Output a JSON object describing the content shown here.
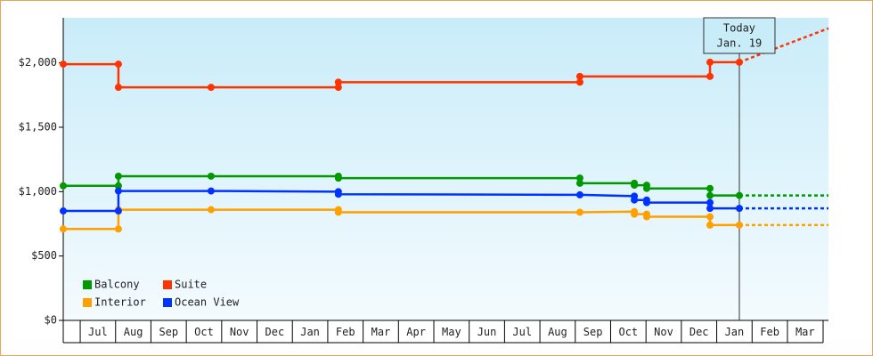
{
  "chart_data": {
    "type": "line",
    "step": true,
    "xlim": [
      -0.48,
      21.16
    ],
    "ylim": [
      0,
      2350
    ],
    "xticks": [
      {
        "value": 0,
        "label": "Jul"
      },
      {
        "value": 1,
        "label": "Aug"
      },
      {
        "value": 2,
        "label": "Sep"
      },
      {
        "value": 3,
        "label": "Oct"
      },
      {
        "value": 4,
        "label": "Nov"
      },
      {
        "value": 5,
        "label": "Dec"
      },
      {
        "value": 6,
        "label": "Jan"
      },
      {
        "value": 7,
        "label": "Feb"
      },
      {
        "value": 8,
        "label": "Mar"
      },
      {
        "value": 9,
        "label": "Apr"
      },
      {
        "value": 10,
        "label": "May"
      },
      {
        "value": 11,
        "label": "Jun"
      },
      {
        "value": 12,
        "label": "Jul"
      },
      {
        "value": 13,
        "label": "Aug"
      },
      {
        "value": 14,
        "label": "Sep"
      },
      {
        "value": 15,
        "label": "Oct"
      },
      {
        "value": 16,
        "label": "Nov"
      },
      {
        "value": 17,
        "label": "Dec"
      },
      {
        "value": 18,
        "label": "Jan"
      },
      {
        "value": 19,
        "label": "Feb"
      },
      {
        "value": 20,
        "label": "Mar"
      }
    ],
    "yticks": [
      {
        "value": 0,
        "label": "$0"
      },
      {
        "value": 500,
        "label": "$500"
      },
      {
        "value": 1000,
        "label": "$1,000"
      },
      {
        "value": 1500,
        "label": "$1,500"
      },
      {
        "value": 2000,
        "label": "$2,000"
      }
    ],
    "annotation": {
      "x": 18.64,
      "text": [
        "Today",
        "Jan. 19"
      ]
    },
    "series": [
      {
        "name": "Balcony",
        "color": "#009900",
        "x": [
          -0.48,
          1.08,
          1.08,
          3.7,
          7.3,
          7.3,
          14.13,
          14.13,
          15.67,
          15.67,
          16.02,
          16.02,
          17.81,
          17.81,
          18.64
        ],
        "values": [
          1045,
          1045,
          1120,
          1120,
          1120,
          1105,
          1105,
          1065,
          1065,
          1050,
          1050,
          1025,
          1025,
          970,
          970
        ],
        "projection": {
          "x": [
            18.64,
            21.16
          ],
          "values": [
            970,
            970
          ]
        }
      },
      {
        "name": "Suite",
        "color": "#ff3300",
        "x": [
          -0.48,
          1.08,
          1.08,
          3.7,
          7.3,
          7.3,
          14.13,
          14.13,
          17.81,
          17.81,
          18.64
        ],
        "values": [
          1990,
          1990,
          1810,
          1810,
          1810,
          1850,
          1850,
          1895,
          1895,
          2005,
          2005
        ],
        "projection": {
          "x": [
            18.64,
            21.16
          ],
          "values": [
            2005,
            2268
          ]
        }
      },
      {
        "name": "Interior",
        "color": "#ffa000",
        "x": [
          -0.48,
          1.08,
          1.08,
          3.7,
          7.3,
          7.3,
          14.13,
          15.67,
          15.67,
          16.02,
          16.02,
          17.81,
          17.81,
          18.64
        ],
        "values": [
          710,
          710,
          860,
          860,
          860,
          840,
          840,
          845,
          825,
          825,
          805,
          805,
          740,
          740
        ],
        "projection": {
          "x": [
            18.64,
            21.16
          ],
          "values": [
            740,
            740
          ]
        }
      },
      {
        "name": "Ocean View",
        "color": "#0033ff",
        "x": [
          -0.48,
          1.08,
          1.08,
          3.7,
          7.3,
          7.3,
          14.13,
          15.67,
          15.67,
          16.02,
          16.02,
          17.81,
          17.81,
          18.64
        ],
        "values": [
          850,
          850,
          1005,
          1005,
          1000,
          980,
          975,
          965,
          935,
          935,
          915,
          915,
          870,
          870
        ],
        "projection": {
          "x": [
            18.64,
            21.16
          ],
          "values": [
            870,
            870
          ]
        }
      }
    ]
  }
}
